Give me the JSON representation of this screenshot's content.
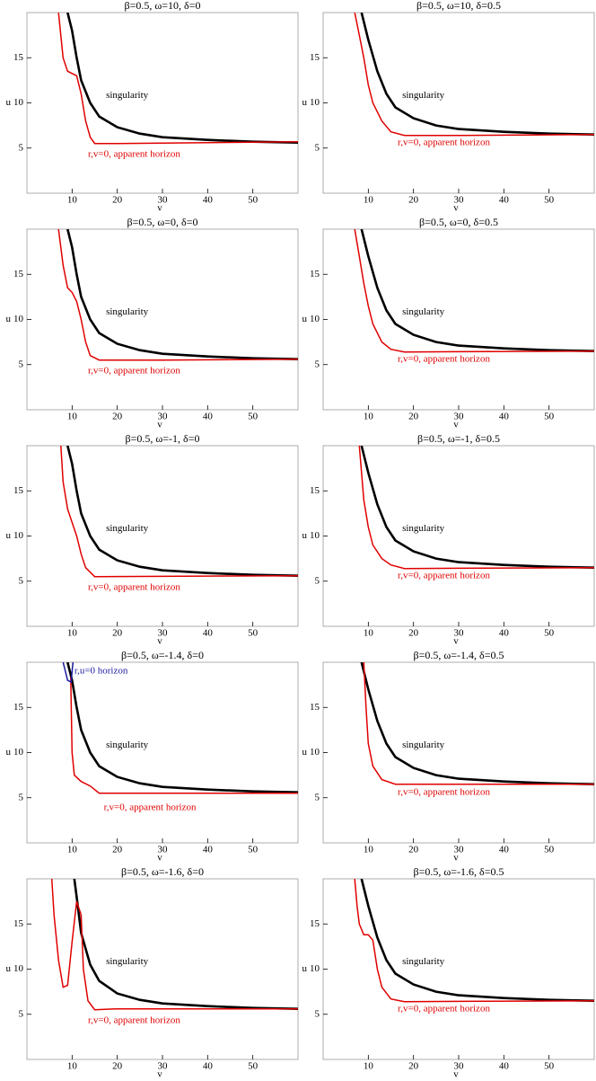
{
  "chart_data": [
    {
      "type": "line",
      "title": "β=0.5, ω=10, δ=0",
      "xlabel": "v",
      "ylabel": "u",
      "xlim": [
        0,
        60
      ],
      "ylim": [
        0,
        20
      ],
      "xticks": [
        10,
        20,
        30,
        40,
        50
      ],
      "yticks": [
        5,
        10,
        15
      ],
      "series": [
        {
          "name": "singularity",
          "color": "#000000",
          "x": [
            9,
            10,
            11,
            12,
            14,
            16,
            20,
            25,
            30,
            40,
            50,
            60
          ],
          "values": [
            20,
            18,
            15,
            12.5,
            10,
            8.5,
            7.3,
            6.6,
            6.2,
            5.9,
            5.7,
            5.6
          ]
        },
        {
          "name": "r,v=0, apparent horizon",
          "color": "#e00000",
          "x": [
            7,
            8,
            9,
            11,
            12,
            13,
            14,
            15,
            20,
            40,
            60
          ],
          "values": [
            20,
            15,
            13.5,
            13,
            11,
            8,
            6.2,
            5.5,
            5.5,
            5.6,
            5.7
          ]
        }
      ]
    },
    {
      "type": "line",
      "title": "β=0.5, ω=10, δ=0.5",
      "xlabel": "v",
      "ylabel": "u",
      "xlim": [
        0,
        60
      ],
      "ylim": [
        0,
        20
      ],
      "xticks": [
        10,
        20,
        30,
        40,
        50
      ],
      "yticks": [
        5,
        10,
        15
      ],
      "series": [
        {
          "name": "singularity",
          "color": "#000000",
          "x": [
            8.5,
            10,
            12,
            14,
            16,
            20,
            25,
            30,
            40,
            50,
            60
          ],
          "values": [
            20,
            17,
            13.5,
            11,
            9.5,
            8.3,
            7.5,
            7.1,
            6.8,
            6.6,
            6.5
          ]
        },
        {
          "name": "r,v=0, apparent horizon",
          "color": "#e00000",
          "x": [
            7,
            8,
            9,
            10,
            11,
            13,
            15,
            18,
            30,
            60
          ],
          "values": [
            20,
            17.5,
            15,
            12,
            10,
            8,
            6.8,
            6.4,
            6.4,
            6.5
          ]
        }
      ]
    },
    {
      "type": "line",
      "title": "β=0.5, ω=0, δ=0",
      "xlabel": "v",
      "ylabel": "u",
      "xlim": [
        0,
        60
      ],
      "ylim": [
        0,
        20
      ],
      "xticks": [
        10,
        20,
        30,
        40,
        50
      ],
      "yticks": [
        5,
        10,
        15
      ],
      "series": [
        {
          "name": "singularity",
          "color": "#000000",
          "x": [
            9,
            10,
            11,
            12,
            14,
            16,
            20,
            25,
            30,
            40,
            50,
            60
          ],
          "values": [
            20,
            18,
            15,
            12.5,
            10,
            8.5,
            7.3,
            6.6,
            6.2,
            5.9,
            5.7,
            5.6
          ]
        },
        {
          "name": "r,v=0, apparent horizon",
          "color": "#e00000",
          "x": [
            7,
            8,
            9,
            10,
            11,
            12,
            13,
            14,
            16,
            30,
            60
          ],
          "values": [
            20,
            16,
            13.5,
            13,
            12,
            10,
            7.5,
            6,
            5.5,
            5.5,
            5.6
          ]
        }
      ]
    },
    {
      "type": "line",
      "title": "β=0.5, ω=0, δ=0.5",
      "xlabel": "v",
      "ylabel": "u",
      "xlim": [
        0,
        60
      ],
      "ylim": [
        0,
        20
      ],
      "xticks": [
        10,
        20,
        30,
        40,
        50
      ],
      "yticks": [
        5,
        10,
        15
      ],
      "series": [
        {
          "name": "singularity",
          "color": "#000000",
          "x": [
            8.5,
            10,
            12,
            14,
            16,
            20,
            25,
            30,
            40,
            50,
            60
          ],
          "values": [
            20,
            17,
            13.5,
            11,
            9.5,
            8.3,
            7.5,
            7.1,
            6.8,
            6.6,
            6.5
          ]
        },
        {
          "name": "r,v=0, apparent horizon",
          "color": "#e00000",
          "x": [
            7,
            8,
            9,
            10,
            11,
            13,
            15,
            18,
            60
          ],
          "values": [
            20,
            17,
            14,
            11.5,
            9.5,
            7.5,
            6.7,
            6.4,
            6.5
          ]
        }
      ]
    },
    {
      "type": "line",
      "title": "β=0.5, ω=-1, δ=0",
      "xlabel": "v",
      "ylabel": "u",
      "xlim": [
        0,
        60
      ],
      "ylim": [
        0,
        20
      ],
      "xticks": [
        10,
        20,
        30,
        40,
        50
      ],
      "yticks": [
        5,
        10,
        15
      ],
      "series": [
        {
          "name": "singularity",
          "color": "#000000",
          "x": [
            9,
            10,
            11,
            12,
            14,
            16,
            20,
            25,
            30,
            40,
            50,
            60
          ],
          "values": [
            20,
            18,
            15,
            12.5,
            10,
            8.5,
            7.3,
            6.6,
            6.2,
            5.9,
            5.7,
            5.6
          ]
        },
        {
          "name": "r,v=0, apparent horizon",
          "color": "#e00000",
          "x": [
            7.5,
            8,
            9,
            10,
            11,
            12,
            13,
            15,
            60
          ],
          "values": [
            20,
            16,
            13,
            11.5,
            10,
            8,
            6.5,
            5.5,
            5.6
          ]
        }
      ]
    },
    {
      "type": "line",
      "title": "β=0.5, ω=-1, δ=0.5",
      "xlabel": "v",
      "ylabel": "u",
      "xlim": [
        0,
        60
      ],
      "ylim": [
        0,
        20
      ],
      "xticks": [
        10,
        20,
        30,
        40,
        50
      ],
      "yticks": [
        5,
        10,
        15
      ],
      "series": [
        {
          "name": "singularity",
          "color": "#000000",
          "x": [
            8.5,
            10,
            12,
            14,
            16,
            20,
            25,
            30,
            40,
            50,
            60
          ],
          "values": [
            20,
            17,
            13.5,
            11,
            9.5,
            8.3,
            7.5,
            7.1,
            6.8,
            6.6,
            6.5
          ]
        },
        {
          "name": "r,v=0, apparent horizon",
          "color": "#e00000",
          "x": [
            8,
            8.5,
            9,
            10,
            11,
            13,
            15,
            18,
            60
          ],
          "values": [
            20,
            17,
            14,
            11,
            9,
            7.5,
            6.8,
            6.4,
            6.5
          ]
        }
      ]
    },
    {
      "type": "line",
      "title": "β=0.5, ω=-1.4, δ=0",
      "xlabel": "v",
      "ylabel": "u",
      "xlim": [
        0,
        60
      ],
      "ylim": [
        0,
        20
      ],
      "xticks": [
        10,
        20,
        30,
        40,
        50
      ],
      "yticks": [
        5,
        10,
        15
      ],
      "series": [
        {
          "name": "singularity",
          "color": "#000000",
          "x": [
            9,
            10,
            11,
            12,
            14,
            16,
            20,
            25,
            30,
            40,
            50,
            60
          ],
          "values": [
            20,
            18,
            15,
            12.5,
            10,
            8.5,
            7.3,
            6.6,
            6.2,
            5.9,
            5.7,
            5.6
          ]
        },
        {
          "name": "r,v=0, apparent horizon",
          "color": "#e00000",
          "x": [
            9.7,
            10,
            10.5,
            12,
            14,
            16,
            60
          ],
          "values": [
            18.3,
            10,
            7.5,
            6.8,
            6.3,
            5.5,
            5.5
          ]
        },
        {
          "name": "r,u=0 horizon",
          "color": "#1a1aa0",
          "x": [
            8,
            8.5,
            9,
            9.8,
            10,
            10.2
          ],
          "values": [
            20,
            19,
            18,
            17.8,
            19,
            20
          ]
        }
      ]
    },
    {
      "type": "line",
      "title": "β=0.5, ω=-1.4, δ=0.5",
      "xlabel": "v",
      "ylabel": "u",
      "xlim": [
        0,
        60
      ],
      "ylim": [
        0,
        20
      ],
      "xticks": [
        10,
        20,
        30,
        40,
        50
      ],
      "yticks": [
        5,
        10,
        15
      ],
      "series": [
        {
          "name": "singularity",
          "color": "#000000",
          "x": [
            8.5,
            10,
            12,
            14,
            16,
            20,
            25,
            30,
            40,
            50,
            60
          ],
          "values": [
            20,
            17,
            13.5,
            11,
            9.5,
            8.3,
            7.5,
            7.1,
            6.8,
            6.6,
            6.5
          ]
        },
        {
          "name": "r,v=0, apparent horizon",
          "color": "#e00000",
          "x": [
            9,
            9.5,
            10,
            11,
            13,
            16,
            60
          ],
          "values": [
            20,
            15,
            11,
            8.5,
            7,
            6.5,
            6.5
          ]
        }
      ]
    },
    {
      "type": "line",
      "title": "β=0.5, ω=-1.6, δ=0",
      "xlabel": "v",
      "ylabel": "u",
      "xlim": [
        0,
        60
      ],
      "ylim": [
        0,
        20
      ],
      "xticks": [
        10,
        20,
        30,
        40,
        50
      ],
      "yticks": [
        5,
        10,
        15
      ],
      "series": [
        {
          "name": "singularity",
          "color": "#000000",
          "x": [
            10.5,
            11,
            12,
            14,
            16,
            20,
            25,
            30,
            40,
            50,
            60
          ],
          "values": [
            20,
            18,
            14,
            10.5,
            8.7,
            7.3,
            6.6,
            6.2,
            5.9,
            5.7,
            5.6
          ]
        },
        {
          "name": "r,v=0, apparent horizon",
          "color": "#e00000",
          "x": [
            5.5,
            6,
            7,
            8,
            9,
            10,
            11,
            12,
            12.5,
            13.5,
            15,
            20,
            60
          ],
          "values": [
            20,
            16,
            11,
            8,
            8.2,
            13,
            17.5,
            16,
            10,
            6.5,
            5.5,
            5.6,
            5.6
          ]
        }
      ]
    },
    {
      "type": "line",
      "title": "β=0.5, ω=-1.6, δ=0.5",
      "xlabel": "v",
      "ylabel": "u",
      "xlim": [
        0,
        60
      ],
      "ylim": [
        0,
        20
      ],
      "xticks": [
        10,
        20,
        30,
        40,
        50
      ],
      "yticks": [
        5,
        10,
        15
      ],
      "series": [
        {
          "name": "singularity",
          "color": "#000000",
          "x": [
            8.5,
            10,
            12,
            14,
            16,
            20,
            25,
            30,
            40,
            50,
            60
          ],
          "values": [
            20,
            17,
            13.5,
            11,
            9.5,
            8.3,
            7.5,
            7.1,
            6.8,
            6.6,
            6.5
          ]
        },
        {
          "name": "r,v=0, apparent horizon",
          "color": "#e00000",
          "x": [
            7,
            7.5,
            8,
            9,
            10,
            11,
            12,
            13,
            15,
            18,
            60
          ],
          "values": [
            20,
            17,
            15,
            13.8,
            13.8,
            13.2,
            10,
            8,
            6.7,
            6.4,
            6.5
          ]
        }
      ]
    }
  ]
}
